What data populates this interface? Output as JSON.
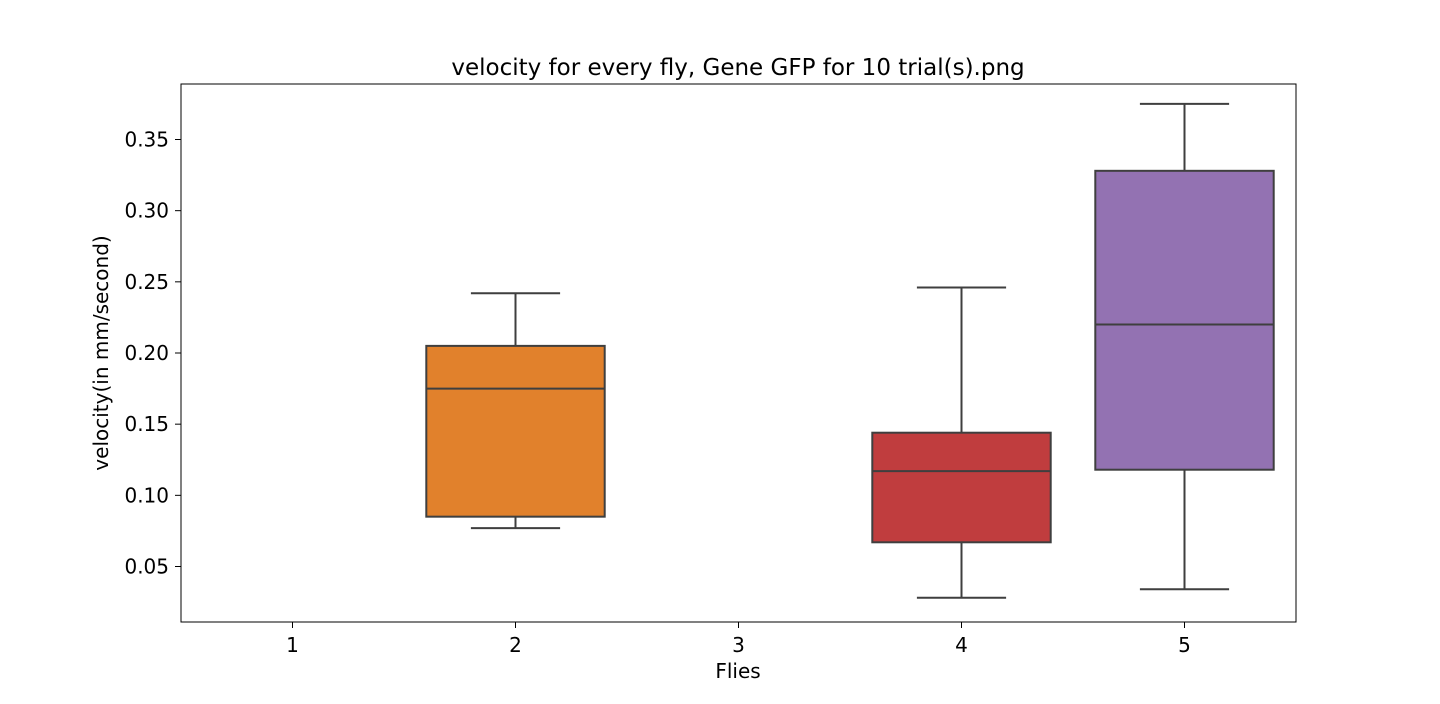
{
  "chart_data": {
    "type": "box",
    "title": "velocity for every fly, Gene GFP for 10 trial(s).png",
    "xlabel": "Flies",
    "ylabel": "velocity(in mm/second)",
    "categories": [
      "1",
      "2",
      "3",
      "4",
      "5"
    ],
    "ylim": [
      0.011,
      0.389
    ],
    "yticks": [
      0.05,
      0.1,
      0.15,
      0.2,
      0.25,
      0.3,
      0.35
    ],
    "ytick_labels": [
      "0.05",
      "0.10",
      "0.15",
      "0.20",
      "0.25",
      "0.30",
      "0.35"
    ],
    "grid": false,
    "legend": "none",
    "boxes": [
      {
        "category": "1",
        "present": false
      },
      {
        "category": "2",
        "present": true,
        "whisker_low": 0.077,
        "q1": 0.085,
        "median": 0.175,
        "q3": 0.205,
        "whisker_high": 0.242,
        "color": "#e1812c"
      },
      {
        "category": "3",
        "present": false
      },
      {
        "category": "4",
        "present": true,
        "whisker_low": 0.028,
        "q1": 0.067,
        "median": 0.117,
        "q3": 0.144,
        "whisker_high": 0.246,
        "color": "#c03d3e"
      },
      {
        "category": "5",
        "present": true,
        "whisker_low": 0.034,
        "q1": 0.118,
        "median": 0.22,
        "q3": 0.328,
        "whisker_high": 0.375,
        "color": "#9372b2"
      }
    ],
    "line_color": "#3f3f3f"
  }
}
